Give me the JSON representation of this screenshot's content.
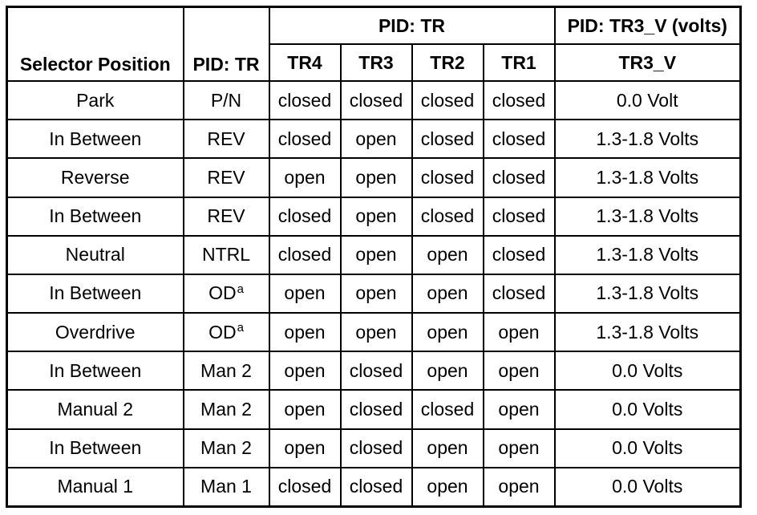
{
  "table": {
    "headers": {
      "selector_position": "Selector Position",
      "pid_tr": "PID: TR",
      "pid_tr_group": "PID: TR",
      "pid_tr3v_group": "PID: TR3_V (volts)",
      "tr4": "TR4",
      "tr3": "TR3",
      "tr2": "TR2",
      "tr1": "TR1",
      "tr3_v": "TR3_V"
    },
    "rows": [
      {
        "position": "Park",
        "pid": "P/N",
        "footnote": "",
        "tr4": "closed",
        "tr3": "closed",
        "tr2": "closed",
        "tr1": "closed",
        "tr3_v": "0.0 Volt"
      },
      {
        "position": "In Between",
        "pid": "REV",
        "footnote": "",
        "tr4": "closed",
        "tr3": "open",
        "tr2": "closed",
        "tr1": "closed",
        "tr3_v": "1.3-1.8 Volts"
      },
      {
        "position": "Reverse",
        "pid": "REV",
        "footnote": "",
        "tr4": "open",
        "tr3": "open",
        "tr2": "closed",
        "tr1": "closed",
        "tr3_v": "1.3-1.8 Volts"
      },
      {
        "position": "In Between",
        "pid": "REV",
        "footnote": "",
        "tr4": "closed",
        "tr3": "open",
        "tr2": "closed",
        "tr1": "closed",
        "tr3_v": "1.3-1.8 Volts"
      },
      {
        "position": "Neutral",
        "pid": "NTRL",
        "footnote": "",
        "tr4": "closed",
        "tr3": "open",
        "tr2": "open",
        "tr1": "closed",
        "tr3_v": "1.3-1.8 Volts"
      },
      {
        "position": "In Between",
        "pid": "OD",
        "footnote": "a",
        "tr4": "open",
        "tr3": "open",
        "tr2": "open",
        "tr1": "closed",
        "tr3_v": "1.3-1.8 Volts"
      },
      {
        "position": "Overdrive",
        "pid": "OD",
        "footnote": "a",
        "tr4": "open",
        "tr3": "open",
        "tr2": "open",
        "tr1": "open",
        "tr3_v": "1.3-1.8 Volts"
      },
      {
        "position": "In Between",
        "pid": "Man 2",
        "footnote": "",
        "tr4": "open",
        "tr3": "closed",
        "tr2": "open",
        "tr1": "open",
        "tr3_v": "0.0 Volts"
      },
      {
        "position": "Manual 2",
        "pid": "Man 2",
        "footnote": "",
        "tr4": "open",
        "tr3": "closed",
        "tr2": "closed",
        "tr1": "open",
        "tr3_v": "0.0 Volts"
      },
      {
        "position": "In Between",
        "pid": "Man 2",
        "footnote": "",
        "tr4": "open",
        "tr3": "closed",
        "tr2": "open",
        "tr1": "open",
        "tr3_v": "0.0 Volts"
      },
      {
        "position": "Manual 1",
        "pid": "Man 1",
        "footnote": "",
        "tr4": "closed",
        "tr3": "closed",
        "tr2": "open",
        "tr1": "open",
        "tr3_v": "0.0 Volts"
      }
    ]
  }
}
